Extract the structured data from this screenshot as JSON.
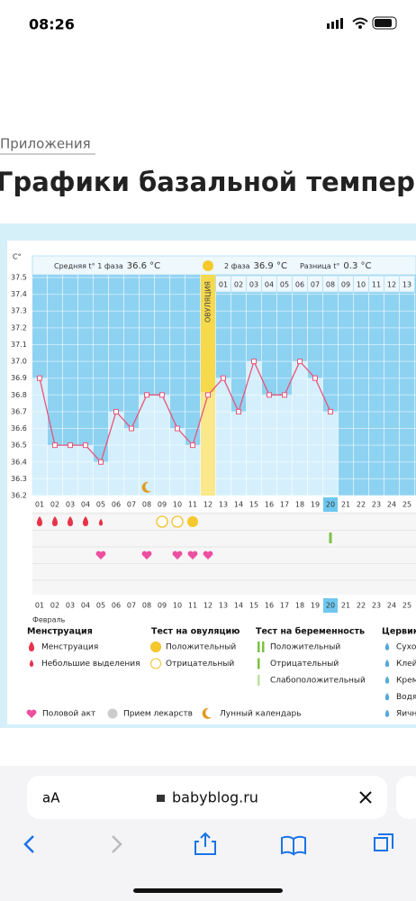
{
  "status": {
    "time": "08:26"
  },
  "breadcrumb": "Приложения",
  "title": "Графики базальной темпера",
  "chart_data": {
    "type": "line",
    "y_label": "C°",
    "phase1_label": "Средняя t° 1 фаза",
    "phase1_value": "36.6 °C",
    "phase2_label": "2 фаза",
    "phase2_value": "36.9 °C",
    "diff_label": "Разница t°",
    "diff_value": "0.3 °C",
    "ovulation_label": "ОВУЛЯЦИЯ",
    "categories": [
      "01",
      "02",
      "03",
      "04",
      "05",
      "06",
      "07",
      "08",
      "09",
      "10",
      "11",
      "12",
      "13",
      "14",
      "15",
      "16",
      "17",
      "18",
      "19",
      "20",
      "21",
      "22",
      "23",
      "24",
      "25"
    ],
    "values": [
      36.9,
      36.5,
      36.5,
      36.5,
      36.4,
      36.7,
      36.6,
      36.8,
      36.8,
      36.6,
      36.5,
      36.8,
      36.9,
      36.7,
      37.0,
      36.8,
      36.8,
      37.0,
      36.9,
      36.7,
      null,
      null,
      null,
      null,
      null
    ],
    "phase2_days": [
      "01",
      "02",
      "03",
      "04",
      "05",
      "06",
      "07",
      "08",
      "09",
      "10",
      "11",
      "12",
      "13"
    ],
    "ylim": [
      36.2,
      37.5
    ],
    "yticks": [
      36.2,
      36.3,
      36.4,
      36.5,
      36.6,
      36.7,
      36.8,
      36.9,
      {
        "value": 37.0,
        "label": "37.0"
      },
      37.1,
      37.2,
      37.3,
      37.4,
      37.5
    ],
    "color": "#e8557a",
    "month": "Февраль",
    "weekend_days": [
      "04",
      "05",
      "11",
      "12",
      "18",
      "19",
      "25"
    ],
    "today": "20",
    "ovulation_day": "12",
    "menstruation_days": [
      "01",
      "02",
      "03",
      "04"
    ],
    "spotting_days": [
      "05"
    ],
    "ovulation_negative_days": [
      "09",
      "10"
    ],
    "ovulation_positive_days": [
      "11"
    ],
    "pregnancy_negative_days": [
      "20"
    ],
    "intercourse_days": [
      "05",
      "08",
      "10",
      "11",
      "12"
    ],
    "moon_days": [
      "08"
    ]
  },
  "legend": {
    "menstruation": {
      "title": "Менструация",
      "items": [
        "Менструация",
        "Небольшие выделения"
      ]
    },
    "ovulation": {
      "title": "Тест на овуляцию",
      "items": [
        "Положительный",
        "Отрицательный"
      ]
    },
    "pregnancy": {
      "title": "Тест на беременность",
      "items": [
        "Положительный",
        "Отрицательный",
        "Слабоположительный"
      ]
    },
    "cervix": {
      "title": "Цервика",
      "items": [
        "Сухо",
        "Клей",
        "Крем",
        "Водя",
        "Яичн"
      ]
    },
    "bottom": [
      "Половой акт",
      "Прием лекарств",
      "Лунный календарь"
    ]
  },
  "browser": {
    "text_size": "аА",
    "url": "babyblog.ru"
  }
}
